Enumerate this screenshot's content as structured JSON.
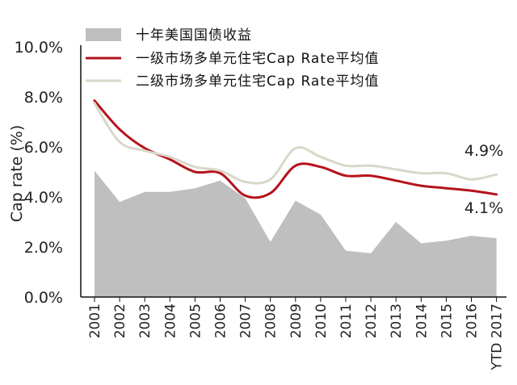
{
  "chart_data": {
    "type": "area",
    "ylabel": "Cap rate (%)",
    "ylim": [
      0,
      10
    ],
    "y_ticks": [
      "0.0%",
      "2.0%",
      "4.0%",
      "6.0%",
      "8.0%",
      "10.0%"
    ],
    "categories": [
      "2001",
      "2002",
      "2003",
      "2004",
      "2005",
      "2006",
      "2007",
      "2008",
      "2009",
      "2010",
      "2011",
      "2012",
      "2013",
      "2014",
      "2015",
      "2016",
      "YTD 2017"
    ],
    "series": [
      {
        "name": "十年美国国债收益",
        "kind": "area",
        "color": "#c0bfc0",
        "values": [
          5.05,
          3.8,
          4.2,
          4.2,
          4.35,
          4.65,
          3.95,
          2.2,
          3.85,
          3.3,
          1.85,
          1.75,
          3.0,
          2.15,
          2.25,
          2.45,
          2.35
        ]
      },
      {
        "name": "一级市场多单元住宅Cap Rate平均值",
        "kind": "line",
        "color": "#b5121b",
        "values": [
          7.85,
          6.7,
          5.95,
          5.5,
          5.0,
          4.95,
          4.05,
          4.15,
          5.25,
          5.2,
          4.85,
          4.85,
          4.65,
          4.45,
          4.35,
          4.25,
          4.1
        ]
      },
      {
        "name": "二级市场多单元住宅Cap Rate平均值",
        "kind": "line",
        "color": "#d9d7c8",
        "values": [
          7.75,
          6.2,
          5.85,
          5.6,
          5.2,
          5.05,
          4.6,
          4.7,
          5.95,
          5.6,
          5.25,
          5.25,
          5.1,
          4.95,
          4.95,
          4.7,
          4.9
        ]
      }
    ],
    "annotations": [
      {
        "text": "4.9%",
        "series": 2,
        "at": "YTD 2017"
      },
      {
        "text": "4.1%",
        "series": 1,
        "at": "YTD 2017"
      }
    ],
    "legend_position": "top",
    "grid": false
  }
}
